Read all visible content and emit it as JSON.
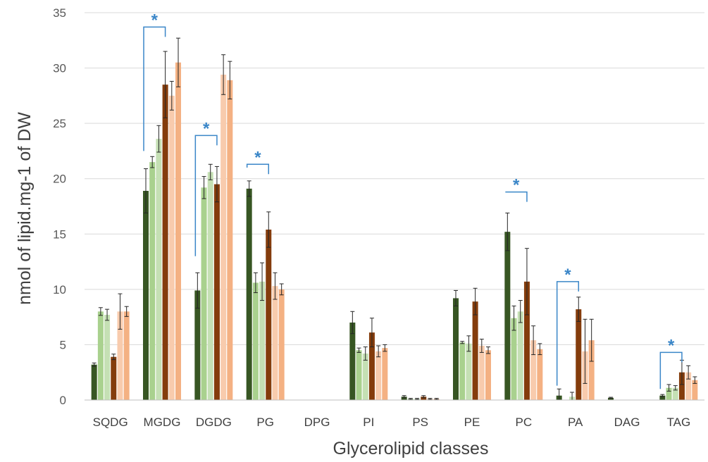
{
  "chart_data": {
    "type": "bar",
    "title": "",
    "xlabel": "Glycerolipid classes",
    "ylabel": "nmol of lipid.mg-1 of DW",
    "ylim": [
      0,
      35
    ],
    "yticks": [
      0,
      5,
      10,
      15,
      20,
      25,
      30,
      35
    ],
    "grid": true,
    "legend": "none",
    "categories": [
      "SQDG",
      "MGDG",
      "DGDG",
      "PG",
      "DPG",
      "PI",
      "PS",
      "PE",
      "PC",
      "PA",
      "DAG",
      "TAG"
    ],
    "series": [
      {
        "color": "#375623",
        "values": [
          3.2,
          18.9,
          9.9,
          19.1,
          0,
          7.0,
          0.3,
          9.2,
          15.2,
          0.4,
          0.2,
          0.4
        ],
        "errors": [
          0.15,
          2.0,
          1.6,
          0.7,
          0,
          1.0,
          0.1,
          0.7,
          1.7,
          0.6,
          0.05,
          0.1
        ]
      },
      {
        "color": "#a9d18e",
        "values": [
          8.0,
          21.5,
          19.2,
          10.6,
          0,
          4.5,
          0.1,
          5.2,
          7.4,
          0,
          0,
          1.1
        ],
        "errors": [
          0.35,
          0.5,
          1.0,
          0.9,
          0,
          0.2,
          0.05,
          0.1,
          1.1,
          0,
          0,
          0.3
        ]
      },
      {
        "color": "#c5e0b4",
        "values": [
          7.7,
          23.6,
          20.6,
          10.7,
          0,
          4.2,
          0.1,
          5.1,
          8.0,
          0.3,
          0,
          1.1
        ],
        "errors": [
          0.5,
          1.2,
          0.7,
          1.7,
          0,
          0.6,
          0.05,
          0.7,
          1.0,
          0.4,
          0,
          0.2
        ]
      },
      {
        "color": "#843c0c",
        "values": [
          3.9,
          28.5,
          19.5,
          15.4,
          0,
          6.1,
          0.3,
          8.9,
          10.7,
          8.2,
          0,
          2.5
        ],
        "errors": [
          0.25,
          3.0,
          1.6,
          1.6,
          0,
          1.3,
          0.1,
          1.2,
          3.0,
          1.1,
          0,
          1.1
        ]
      },
      {
        "color": "#f8cbad",
        "values": [
          8.0,
          27.5,
          29.4,
          10.3,
          0,
          4.4,
          0.1,
          4.9,
          5.4,
          4.4,
          0,
          2.5
        ],
        "errors": [
          1.6,
          1.3,
          1.8,
          1.2,
          0,
          0.5,
          0.05,
          0.6,
          1.3,
          2.9,
          0,
          0.6
        ]
      },
      {
        "color": "#f4b183",
        "values": [
          8.0,
          30.5,
          28.9,
          10.0,
          0,
          4.7,
          0.1,
          4.5,
          4.6,
          5.4,
          0,
          1.8
        ],
        "errors": [
          0.45,
          2.2,
          1.7,
          0.5,
          0,
          0.3,
          0.05,
          0.3,
          0.5,
          1.9,
          0,
          0.3
        ]
      }
    ],
    "significance": [
      {
        "category_index": 1,
        "label": "*",
        "from_series": 0,
        "to_series": 3,
        "low_y": 22.5,
        "bracket_y": 33.7
      },
      {
        "category_index": 2,
        "label": "*",
        "from_series": 0,
        "to_series": 3,
        "low_y": 13.0,
        "bracket_y": 23.9
      },
      {
        "category_index": 3,
        "label": "*",
        "from_series": 0,
        "to_series": 3,
        "low_y": 21.0,
        "bracket_y": 21.3
      },
      {
        "category_index": 8,
        "label": "*",
        "from_series": 0,
        "to_series": 3,
        "low_y": 18.8,
        "bracket_y": 18.8
      },
      {
        "category_index": 9,
        "label": "*",
        "from_series": 0,
        "to_series": 3,
        "low_y": 1.3,
        "bracket_y": 10.7
      },
      {
        "category_index": 11,
        "label": "*",
        "from_series": 0,
        "to_series": 3,
        "low_y": 1.0,
        "bracket_y": 4.3
      }
    ],
    "significance_color": "#3a86c8"
  }
}
